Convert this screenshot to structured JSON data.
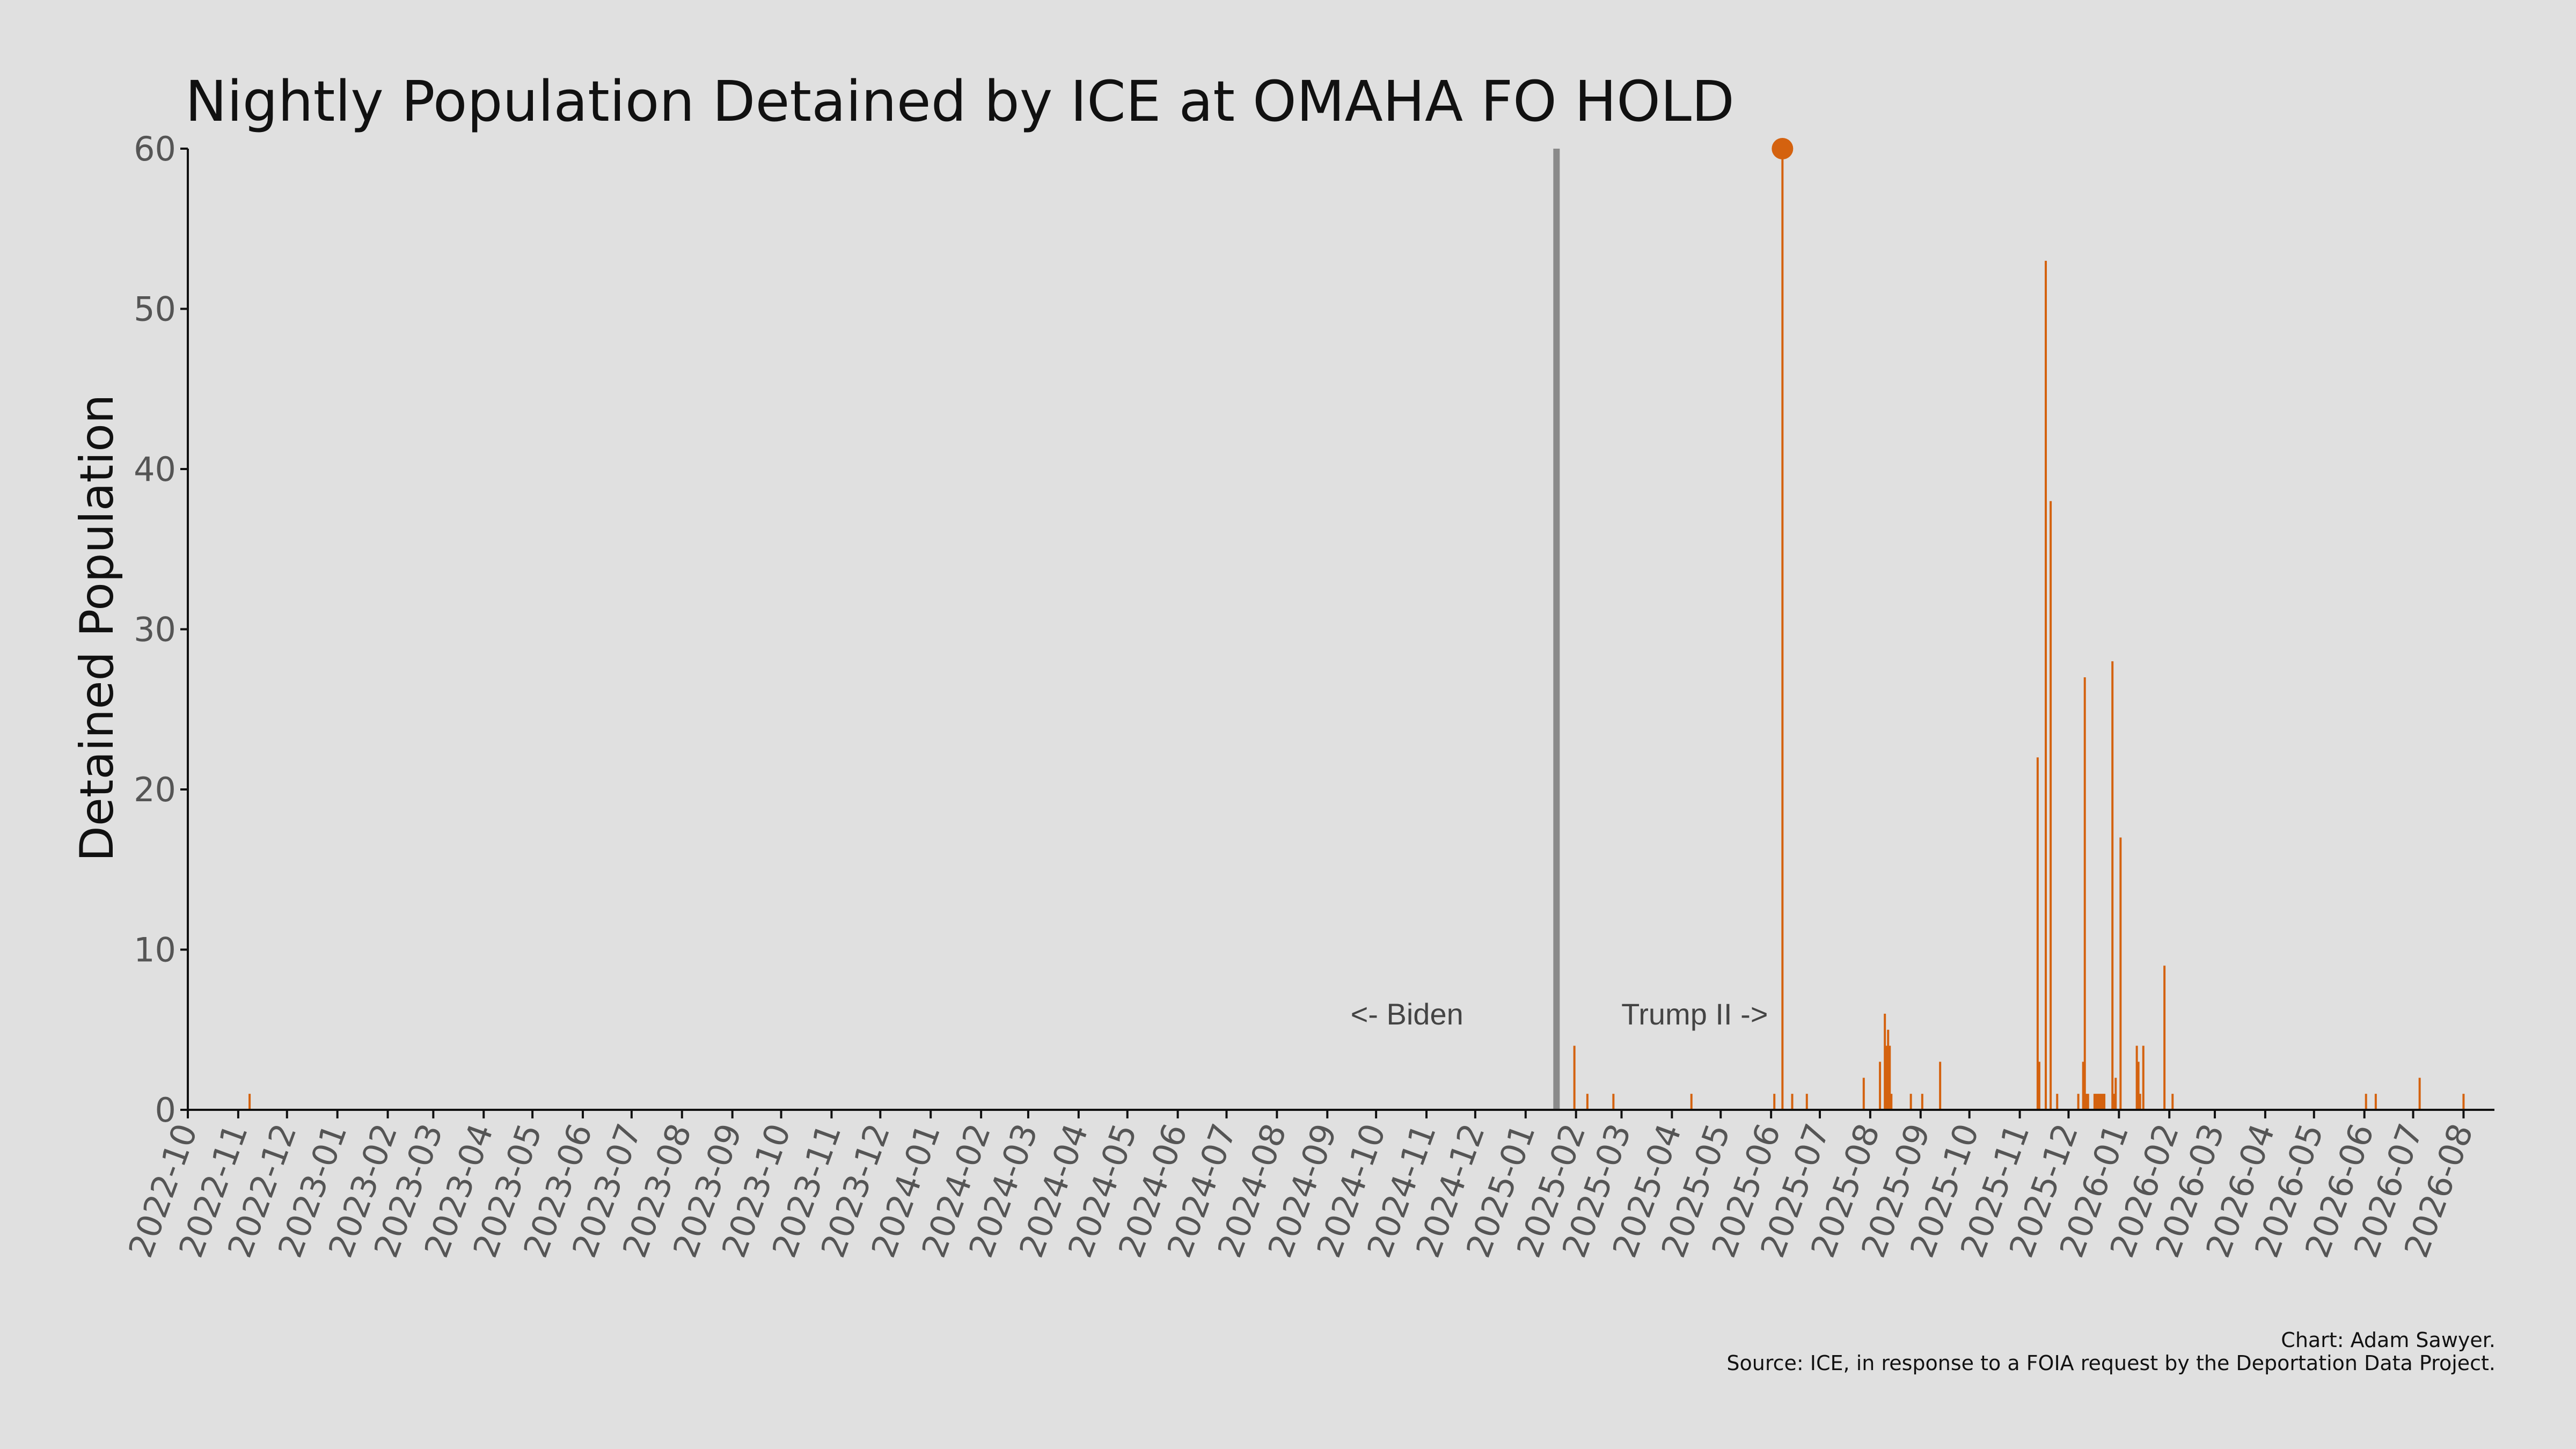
{
  "chart_data": {
    "type": "bar",
    "title": "Nightly Population Detained by ICE at OMAHA FO HOLD",
    "xlabel": "",
    "ylabel": "Detained Population",
    "ylim": [
      0,
      60
    ],
    "xlim": [
      "2022-10-01",
      "2026-08-20"
    ],
    "yticks": [
      0,
      10,
      20,
      30,
      40,
      50,
      60
    ],
    "xticks": [
      "2022-10",
      "2022-11",
      "2022-12",
      "2023-01",
      "2023-02",
      "2023-03",
      "2023-04",
      "2023-05",
      "2023-06",
      "2023-07",
      "2023-08",
      "2023-09",
      "2023-10",
      "2023-11",
      "2023-12",
      "2024-01",
      "2024-02",
      "2024-03",
      "2024-04",
      "2024-05",
      "2024-06",
      "2024-07",
      "2024-08",
      "2024-09",
      "2024-10",
      "2024-11",
      "2024-12",
      "2025-01",
      "2025-02",
      "2025-03",
      "2025-04",
      "2025-05",
      "2025-06",
      "2025-07",
      "2025-08",
      "2025-09",
      "2025-10",
      "2025-11",
      "2025-12",
      "2026-01",
      "2026-02",
      "2026-03",
      "2026-04",
      "2026-05",
      "2026-06",
      "2026-07",
      "2026-08"
    ],
    "grid": false,
    "bar_color": "#d4620f",
    "x": [
      "2022-11-08",
      "2025-01-31",
      "2025-02-08",
      "2025-02-24",
      "2025-04-13",
      "2025-06-03",
      "2025-06-08",
      "2025-06-14",
      "2025-06-23",
      "2025-07-28",
      "2025-08-07",
      "2025-08-10",
      "2025-08-11",
      "2025-08-12",
      "2025-08-13",
      "2025-08-14",
      "2025-08-26",
      "2025-09-02",
      "2025-09-13",
      "2025-11-12",
      "2025-11-13",
      "2025-11-17",
      "2025-11-20",
      "2025-11-24",
      "2025-12-07",
      "2025-12-10",
      "2025-12-11",
      "2025-12-12",
      "2025-12-13",
      "2025-12-17",
      "2025-12-18",
      "2025-12-19",
      "2025-12-20",
      "2025-12-21",
      "2025-12-22",
      "2025-12-23",
      "2025-12-28",
      "2025-12-29",
      "2025-12-30",
      "2026-01-02",
      "2026-01-12",
      "2026-01-13",
      "2026-01-14",
      "2026-01-16",
      "2026-01-29",
      "2026-02-03",
      "2026-06-02",
      "2026-06-08",
      "2026-07-05",
      "2026-08-01"
    ],
    "values": [
      1,
      4,
      1,
      1,
      1,
      1,
      60,
      1,
      1,
      2,
      3,
      6,
      4,
      5,
      4,
      1,
      1,
      1,
      3,
      22,
      3,
      53,
      38,
      1,
      1,
      3,
      27,
      1,
      1,
      1,
      1,
      1,
      1,
      1,
      1,
      1,
      28,
      1,
      2,
      17,
      4,
      3,
      1,
      4,
      9,
      1,
      1,
      1,
      2,
      1
    ],
    "peak_marker": {
      "x": "2025-06-08",
      "y": 60
    },
    "reference_line": {
      "x": "2025-01-20",
      "color": "#8a8a8a"
    },
    "annotations": [
      {
        "text": "<- Biden",
        "x": "2024-10-20",
        "y": 6
      },
      {
        "text": "Trump II ->",
        "x": "2025-04-15",
        "y": 6
      }
    ]
  },
  "footer": {
    "credit": "Chart: Adam Sawyer.",
    "source": "Source: ICE, in response to a FOIA request by the Deportation Data Project."
  }
}
